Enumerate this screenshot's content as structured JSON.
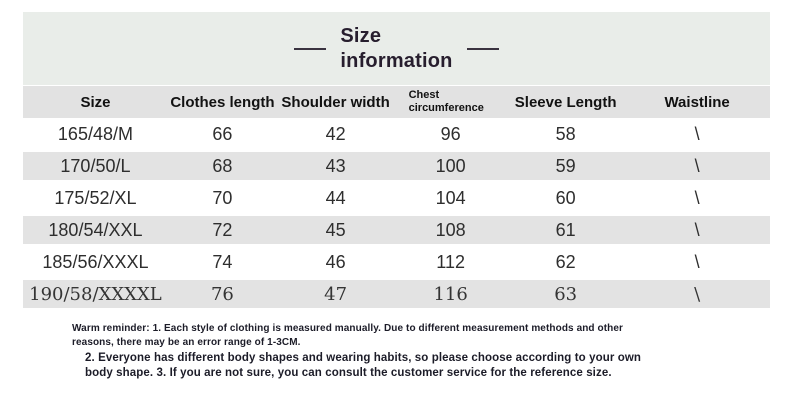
{
  "title": {
    "line1": "Size",
    "line2": "information"
  },
  "chart_data": {
    "type": "table",
    "title": "Size information",
    "columns": [
      "Size",
      "Clothes length",
      "Shoulder width",
      "Chest circumference",
      "Sleeve Length",
      "Waistline"
    ],
    "rows": [
      [
        "165/48/M",
        "66",
        "42",
        "96",
        "58",
        "\\"
      ],
      [
        "170/50/L",
        "68",
        "43",
        "100",
        "59",
        "\\"
      ],
      [
        "175/52/XL",
        "70",
        "44",
        "104",
        "60",
        "\\"
      ],
      [
        "180/54/XXL",
        "72",
        "45",
        "108",
        "61",
        "\\"
      ],
      [
        "185/56/XXXL",
        "74",
        "46",
        "112",
        "62",
        "\\"
      ],
      [
        "190/58/XXXXL",
        "76",
        "47",
        "116",
        "63",
        "\\"
      ]
    ]
  },
  "reminder": {
    "part1": "Warm reminder: 1. Each style of clothing is measured manually. Due to different measurement methods and other reasons, there may be an error range of 1-3CM.",
    "part2": "2. Everyone has different body shapes and wearing habits, so please choose according to your own body shape. 3. If you are not sure, you can consult the customer service for the reference size."
  },
  "colors": {
    "title_band_bg": "#e9ede9",
    "row_gray_bg": "#e3e3e3",
    "header_bg": "#e2e2e2",
    "title_text": "#271e2e",
    "body_text": "#2e2e2e",
    "reminder_text": "#1c1c28"
  }
}
